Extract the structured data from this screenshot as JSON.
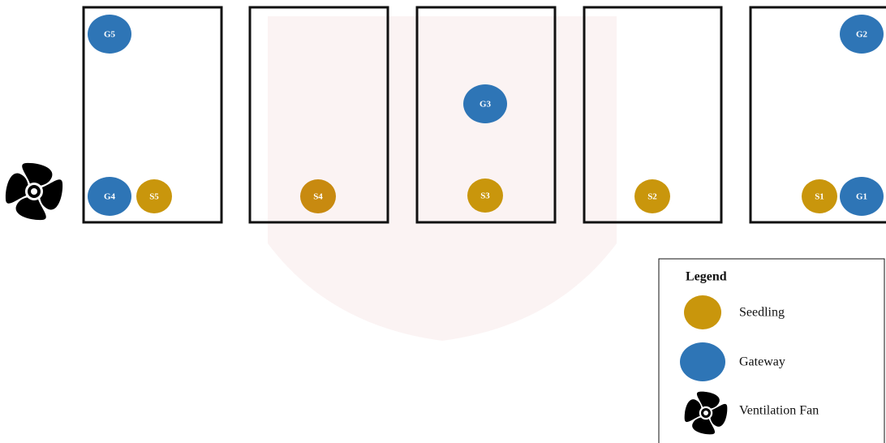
{
  "gateways": [
    "G5",
    "G4",
    "G3",
    "G2",
    "G1"
  ],
  "seedlings": [
    "S5",
    "S4",
    "S3",
    "S2",
    "S1"
  ],
  "legend": {
    "title": "Legend",
    "items": [
      "Seedling",
      "Gateway",
      "Ventilation Fan"
    ]
  }
}
